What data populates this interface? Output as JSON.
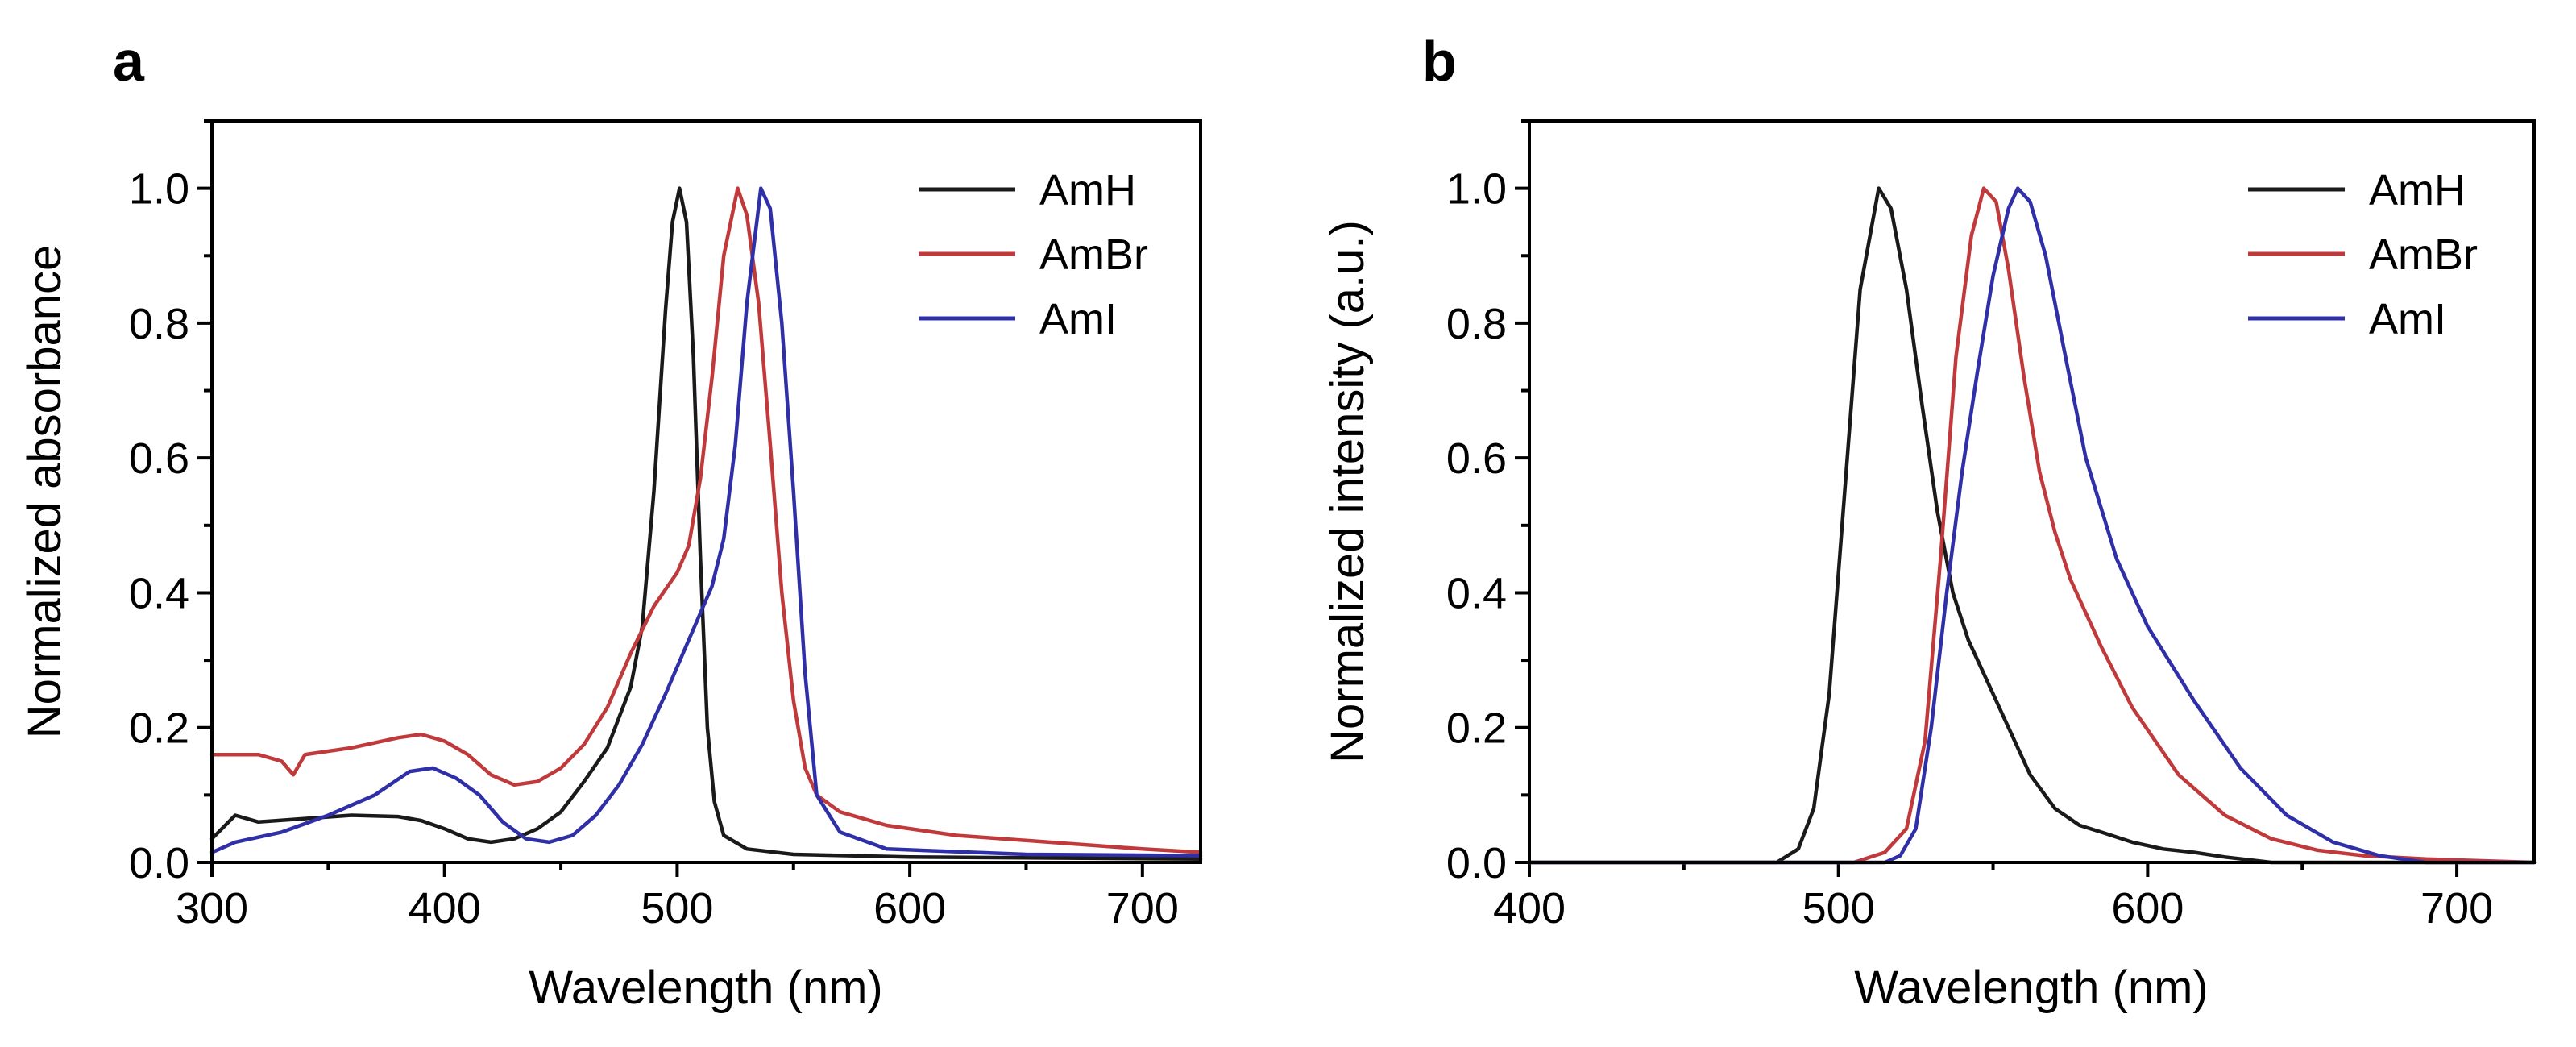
{
  "figure": {
    "panels": [
      "a",
      "b"
    ]
  },
  "chart_data": [
    {
      "panel": "a",
      "type": "line",
      "title": "",
      "xlabel": "Wavelength (nm)",
      "ylabel": "Normalized absorbance",
      "xlim": [
        300,
        725
      ],
      "ylim": [
        0,
        1.1
      ],
      "xticks": [
        300,
        400,
        500,
        600,
        700
      ],
      "yticks": [
        0.0,
        0.2,
        0.4,
        0.6,
        0.8,
        1.0
      ],
      "xtick_labels": [
        "300",
        "400",
        "500",
        "600",
        "700"
      ],
      "ytick_labels": [
        "0.0",
        "0.2",
        "0.4",
        "0.6",
        "0.8",
        "1.0"
      ],
      "legend_position": "top-right",
      "series": [
        {
          "name": "AmH",
          "color": "#1a1a1a",
          "points": [
            [
              300,
              0.035
            ],
            [
              310,
              0.07
            ],
            [
              320,
              0.06
            ],
            [
              340,
              0.065
            ],
            [
              360,
              0.07
            ],
            [
              380,
              0.068
            ],
            [
              390,
              0.062
            ],
            [
              400,
              0.05
            ],
            [
              410,
              0.035
            ],
            [
              420,
              0.03
            ],
            [
              430,
              0.035
            ],
            [
              440,
              0.05
            ],
            [
              450,
              0.075
            ],
            [
              460,
              0.12
            ],
            [
              470,
              0.17
            ],
            [
              480,
              0.26
            ],
            [
              485,
              0.35
            ],
            [
              490,
              0.55
            ],
            [
              495,
              0.82
            ],
            [
              498,
              0.95
            ],
            [
              501,
              1.0
            ],
            [
              504,
              0.95
            ],
            [
              507,
              0.75
            ],
            [
              510,
              0.45
            ],
            [
              513,
              0.2
            ],
            [
              516,
              0.09
            ],
            [
              520,
              0.04
            ],
            [
              530,
              0.02
            ],
            [
              550,
              0.012
            ],
            [
              600,
              0.008
            ],
            [
              725,
              0.005
            ]
          ]
        },
        {
          "name": "AmBr",
          "color": "#c0393b",
          "points": [
            [
              300,
              0.16
            ],
            [
              320,
              0.16
            ],
            [
              330,
              0.15
            ],
            [
              335,
              0.13
            ],
            [
              340,
              0.16
            ],
            [
              360,
              0.17
            ],
            [
              380,
              0.185
            ],
            [
              390,
              0.19
            ],
            [
              400,
              0.18
            ],
            [
              410,
              0.16
            ],
            [
              420,
              0.13
            ],
            [
              430,
              0.115
            ],
            [
              440,
              0.12
            ],
            [
              450,
              0.14
            ],
            [
              460,
              0.175
            ],
            [
              470,
              0.23
            ],
            [
              480,
              0.31
            ],
            [
              490,
              0.38
            ],
            [
              500,
              0.43
            ],
            [
              505,
              0.47
            ],
            [
              510,
              0.57
            ],
            [
              515,
              0.72
            ],
            [
              520,
              0.9
            ],
            [
              526,
              1.0
            ],
            [
              530,
              0.96
            ],
            [
              535,
              0.83
            ],
            [
              540,
              0.62
            ],
            [
              545,
              0.4
            ],
            [
              550,
              0.24
            ],
            [
              555,
              0.14
            ],
            [
              560,
              0.1
            ],
            [
              570,
              0.075
            ],
            [
              590,
              0.055
            ],
            [
              620,
              0.04
            ],
            [
              660,
              0.03
            ],
            [
              700,
              0.02
            ],
            [
              725,
              0.015
            ]
          ]
        },
        {
          "name": "AmI",
          "color": "#2f2fa8",
          "points": [
            [
              300,
              0.015
            ],
            [
              310,
              0.03
            ],
            [
              330,
              0.045
            ],
            [
              350,
              0.07
            ],
            [
              370,
              0.1
            ],
            [
              385,
              0.135
            ],
            [
              395,
              0.14
            ],
            [
              405,
              0.125
            ],
            [
              415,
              0.1
            ],
            [
              425,
              0.06
            ],
            [
              435,
              0.035
            ],
            [
              445,
              0.03
            ],
            [
              455,
              0.04
            ],
            [
              465,
              0.07
            ],
            [
              475,
              0.115
            ],
            [
              485,
              0.175
            ],
            [
              495,
              0.25
            ],
            [
              505,
              0.33
            ],
            [
              515,
              0.41
            ],
            [
              520,
              0.48
            ],
            [
              525,
              0.62
            ],
            [
              530,
              0.83
            ],
            [
              536,
              1.0
            ],
            [
              540,
              0.97
            ],
            [
              545,
              0.8
            ],
            [
              550,
              0.55
            ],
            [
              555,
              0.28
            ],
            [
              560,
              0.1
            ],
            [
              570,
              0.045
            ],
            [
              590,
              0.02
            ],
            [
              650,
              0.012
            ],
            [
              725,
              0.01
            ]
          ]
        }
      ]
    },
    {
      "panel": "b",
      "type": "line",
      "title": "",
      "xlabel": "Wavelength (nm)",
      "ylabel": "Normalized intensity (a.u.)",
      "xlim": [
        400,
        725
      ],
      "ylim": [
        0,
        1.1
      ],
      "xticks": [
        400,
        500,
        600,
        700
      ],
      "yticks": [
        0.0,
        0.2,
        0.4,
        0.6,
        0.8,
        1.0
      ],
      "xtick_labels": [
        "400",
        "500",
        "600",
        "700"
      ],
      "ytick_labels": [
        "0.0",
        "0.2",
        "0.4",
        "0.6",
        "0.8",
        "1.0"
      ],
      "legend_position": "top-right",
      "series": [
        {
          "name": "AmH",
          "color": "#1a1a1a",
          "points": [
            [
              400,
              0.0
            ],
            [
              480,
              0.0
            ],
            [
              487,
              0.02
            ],
            [
              492,
              0.08
            ],
            [
              497,
              0.25
            ],
            [
              502,
              0.55
            ],
            [
              507,
              0.85
            ],
            [
              513,
              1.0
            ],
            [
              517,
              0.97
            ],
            [
              522,
              0.85
            ],
            [
              527,
              0.68
            ],
            [
              532,
              0.52
            ],
            [
              537,
              0.4
            ],
            [
              542,
              0.33
            ],
            [
              548,
              0.27
            ],
            [
              555,
              0.2
            ],
            [
              562,
              0.13
            ],
            [
              570,
              0.08
            ],
            [
              578,
              0.055
            ],
            [
              585,
              0.045
            ],
            [
              595,
              0.03
            ],
            [
              605,
              0.02
            ],
            [
              615,
              0.015
            ],
            [
              625,
              0.008
            ],
            [
              640,
              0.0
            ],
            [
              725,
              0.0
            ]
          ]
        },
        {
          "name": "AmBr",
          "color": "#c0393b",
          "points": [
            [
              400,
              0.0
            ],
            [
              505,
              0.0
            ],
            [
              515,
              0.015
            ],
            [
              522,
              0.05
            ],
            [
              528,
              0.18
            ],
            [
              533,
              0.45
            ],
            [
              538,
              0.75
            ],
            [
              543,
              0.93
            ],
            [
              547,
              1.0
            ],
            [
              551,
              0.98
            ],
            [
              555,
              0.88
            ],
            [
              560,
              0.72
            ],
            [
              565,
              0.58
            ],
            [
              570,
              0.49
            ],
            [
              575,
              0.42
            ],
            [
              585,
              0.32
            ],
            [
              595,
              0.23
            ],
            [
              610,
              0.13
            ],
            [
              625,
              0.07
            ],
            [
              640,
              0.035
            ],
            [
              655,
              0.018
            ],
            [
              670,
              0.01
            ],
            [
              690,
              0.005
            ],
            [
              725,
              0.0
            ]
          ]
        },
        {
          "name": "AmI",
          "color": "#2f2fa8",
          "points": [
            [
              400,
              0.0
            ],
            [
              515,
              0.0
            ],
            [
              520,
              0.01
            ],
            [
              525,
              0.05
            ],
            [
              530,
              0.2
            ],
            [
              535,
              0.4
            ],
            [
              540,
              0.58
            ],
            [
              545,
              0.73
            ],
            [
              550,
              0.87
            ],
            [
              555,
              0.97
            ],
            [
              558,
              1.0
            ],
            [
              562,
              0.98
            ],
            [
              567,
              0.9
            ],
            [
              573,
              0.76
            ],
            [
              580,
              0.6
            ],
            [
              590,
              0.45
            ],
            [
              600,
              0.35
            ],
            [
              615,
              0.24
            ],
            [
              630,
              0.14
            ],
            [
              645,
              0.07
            ],
            [
              660,
              0.03
            ],
            [
              675,
              0.01
            ],
            [
              690,
              0.0
            ],
            [
              725,
              0.0
            ]
          ]
        }
      ]
    }
  ]
}
